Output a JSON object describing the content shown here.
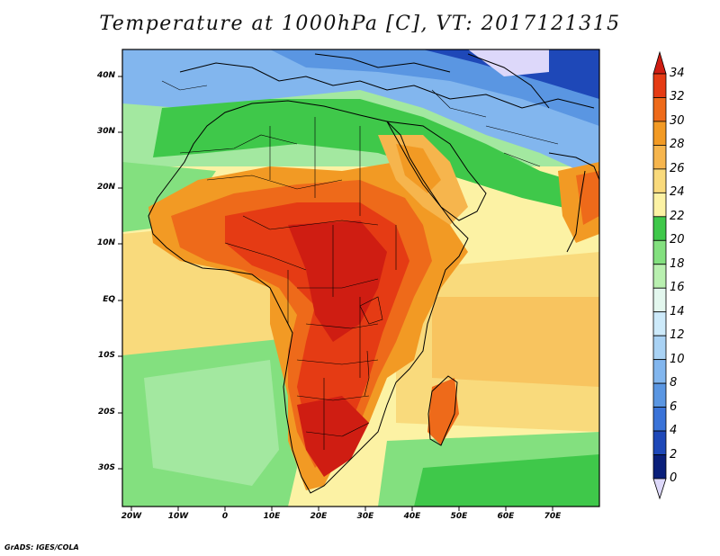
{
  "title": "Temperature at 1000hPa [C], VT: 2017121315",
  "credit": "GrADS: IGES/COLA",
  "lat_labels": [
    "40N",
    "30N",
    "20N",
    "10N",
    "EQ",
    "10S",
    "20S",
    "30S"
  ],
  "lon_labels": [
    "20W",
    "10W",
    "0",
    "10E",
    "20E",
    "30E",
    "40E",
    "50E",
    "60E",
    "70E"
  ],
  "colorbar": {
    "levels": [
      "0",
      "2",
      "4",
      "6",
      "8",
      "10",
      "12",
      "14",
      "16",
      "18",
      "20",
      "22",
      "24",
      "26",
      "28",
      "30",
      "32",
      "34"
    ],
    "colors": [
      "#ddd8fa",
      "#0a1f7a",
      "#1e48b8",
      "#3a73d8",
      "#5a96e2",
      "#82b6ee",
      "#a9d2f4",
      "#cdeafa",
      "#e3f7ee",
      "#b9f0b0",
      "#83e07f",
      "#3fc84a",
      "#fcf2a4",
      "#f9da7c",
      "#f6b54d",
      "#f29a24",
      "#ee6a1a",
      "#e53b14",
      "#cf1d12"
    ]
  },
  "legend_colors": {
    "ocean_cool": "#a3e8a0",
    "ocean_warm": "#f9da7c",
    "land_hot": "#e53b14",
    "land_mild": "#3fc84a",
    "north_cold": "#82b6ee"
  }
}
